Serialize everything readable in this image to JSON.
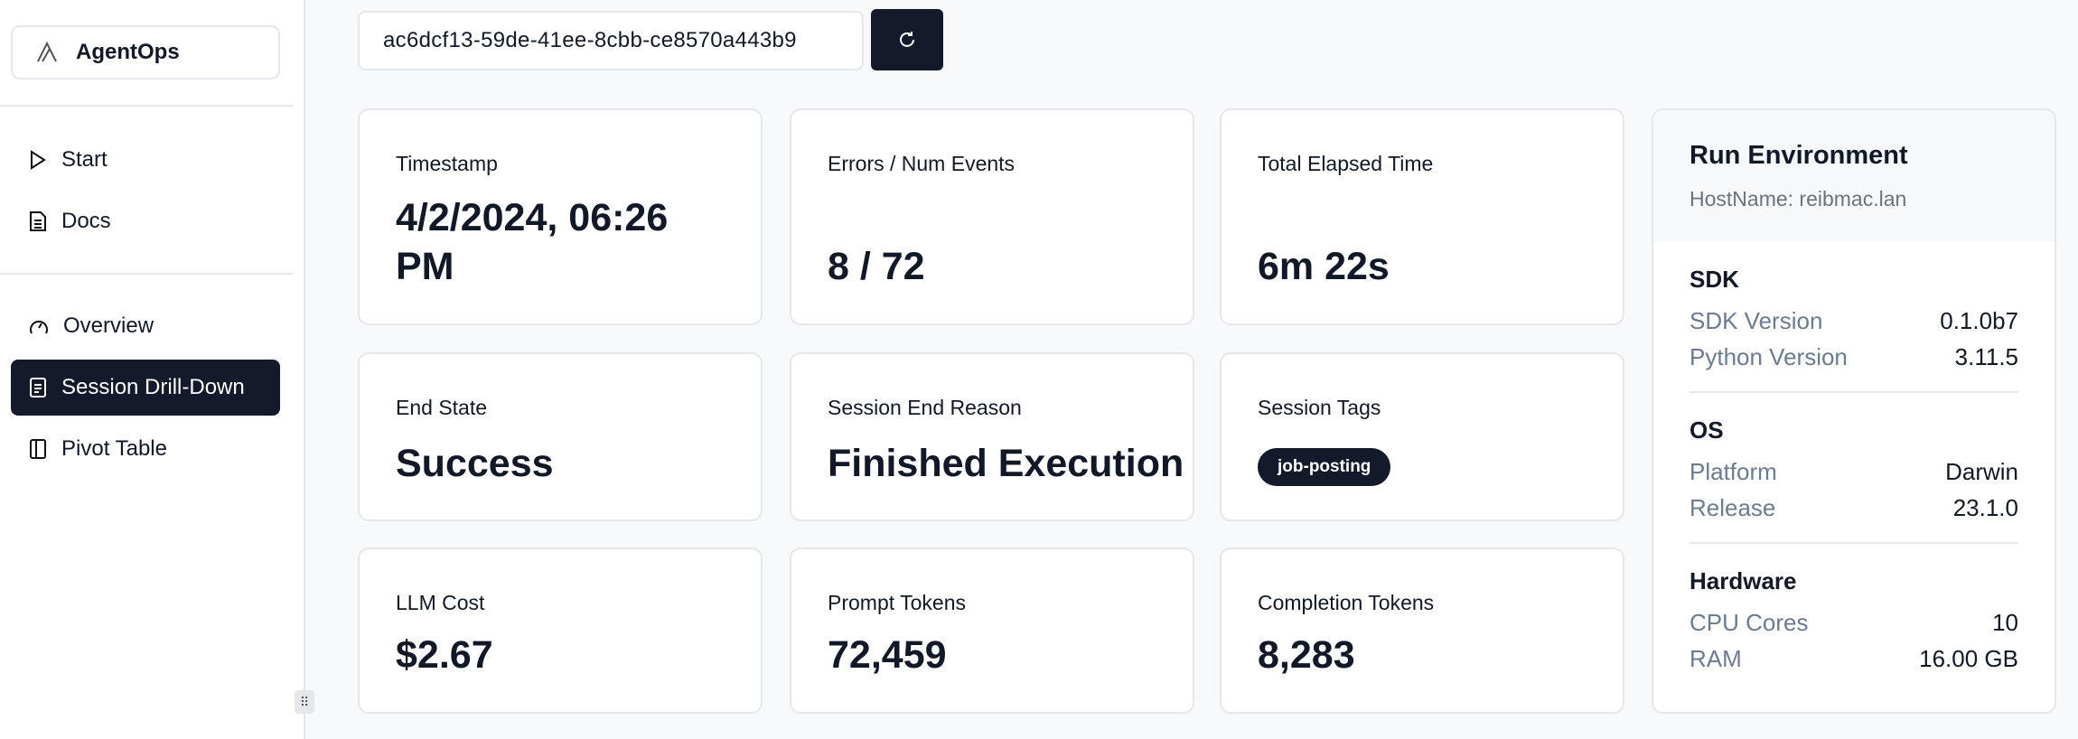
{
  "sidebar": {
    "brand": "AgentOps",
    "items": [
      {
        "label": "Start",
        "icon": "play-icon"
      },
      {
        "label": "Docs",
        "icon": "document-icon"
      },
      {
        "label": "Overview",
        "icon": "gauge-icon"
      },
      {
        "label": "Session Drill-Down",
        "icon": "list-icon",
        "active": true
      },
      {
        "label": "Pivot Table",
        "icon": "columns-icon"
      }
    ]
  },
  "search": {
    "value": "ac6dcf13-59de-41ee-8cbb-ce8570a443b9"
  },
  "cards": {
    "timestamp": {
      "label": "Timestamp",
      "value": "4/2/2024, 06:26 PM"
    },
    "errors": {
      "label": "Errors / Num Events",
      "value": "8 / 72"
    },
    "elapsed": {
      "label": "Total Elapsed Time",
      "value": "6m 22s"
    },
    "end_state": {
      "label": "End State",
      "value": "Success"
    },
    "end_reason": {
      "label": "Session End Reason",
      "value": "Finished Execution"
    },
    "tags": {
      "label": "Session Tags",
      "values": [
        "job-posting"
      ]
    },
    "cost": {
      "label": "LLM Cost",
      "value": "$2.67"
    },
    "prompt": {
      "label": "Prompt Tokens",
      "value": "72,459"
    },
    "completion": {
      "label": "Completion Tokens",
      "value": "8,283"
    }
  },
  "env": {
    "title": "Run Environment",
    "host": "HostName: reibmac.lan",
    "sdk": {
      "title": "SDK",
      "rows": [
        {
          "k": "SDK Version",
          "v": "0.1.0b7"
        },
        {
          "k": "Python Version",
          "v": "3.11.5"
        }
      ]
    },
    "os": {
      "title": "OS",
      "rows": [
        {
          "k": "Platform",
          "v": "Darwin"
        },
        {
          "k": "Release",
          "v": "23.1.0"
        }
      ]
    },
    "hw": {
      "title": "Hardware",
      "rows": [
        {
          "k": "CPU Cores",
          "v": "10"
        },
        {
          "k": "RAM",
          "v": "16.00 GB"
        }
      ]
    }
  },
  "colors": {
    "primary": "#141a2c",
    "border": "#e5e7eb",
    "muted": "#6b7b93"
  }
}
